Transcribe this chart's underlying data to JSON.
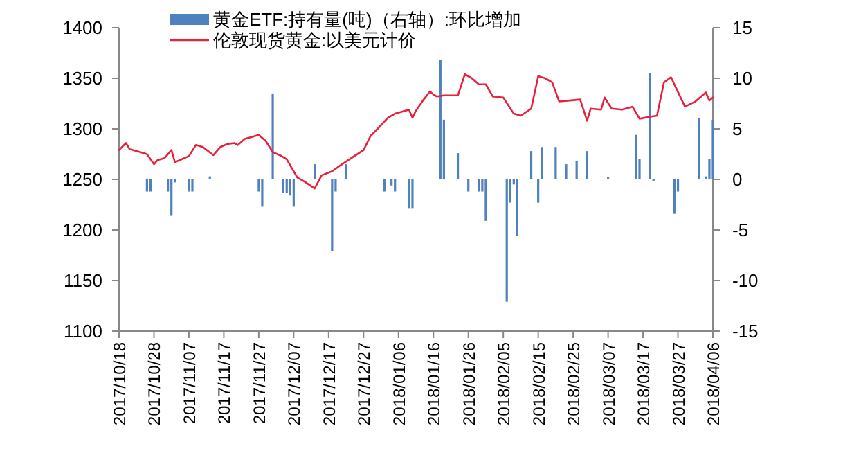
{
  "chart_data": {
    "type": "line",
    "legend": "top",
    "xlim": [
      "2017-10-18",
      "2018-04-06"
    ],
    "xticks": [
      {
        "value": "2017-10-18",
        "label": "2017/10/18"
      },
      {
        "value": "2017-10-28",
        "label": "2017/10/28"
      },
      {
        "value": "2017-11-07",
        "label": "2017/11/07"
      },
      {
        "value": "2017-11-17",
        "label": "2017/11/17"
      },
      {
        "value": "2017-11-27",
        "label": "2017/11/27"
      },
      {
        "value": "2017-12-07",
        "label": "2017/12/07"
      },
      {
        "value": "2017-12-17",
        "label": "2017/12/17"
      },
      {
        "value": "2017-12-27",
        "label": "2017/12/27"
      },
      {
        "value": "2018-01-06",
        "label": "2018/01/06"
      },
      {
        "value": "2018-01-16",
        "label": "2018/01/16"
      },
      {
        "value": "2018-01-26",
        "label": "2018/01/26"
      },
      {
        "value": "2018-02-05",
        "label": "2018/02/05"
      },
      {
        "value": "2018-02-15",
        "label": "2018/02/15"
      },
      {
        "value": "2018-02-25",
        "label": "2018/02/25"
      },
      {
        "value": "2018-03-07",
        "label": "2018/03/07"
      },
      {
        "value": "2018-03-17",
        "label": "2018/03/17"
      },
      {
        "value": "2018-03-27",
        "label": "2018/03/27"
      },
      {
        "value": "2018-04-06",
        "label": "2018/04/06"
      }
    ],
    "ylim": [
      1100,
      1400
    ],
    "yticks": [
      1100,
      1150,
      1200,
      1250,
      1300,
      1350,
      1400
    ],
    "y2lim": [
      -15,
      15
    ],
    "y2ticks": [
      -15,
      -10,
      -5,
      0,
      5,
      10,
      15
    ],
    "series": [
      {
        "name": "黄金ETF:持有量(吨)（右轴）:环比增加",
        "type": "bar",
        "axis": "y2",
        "color": "#4f81bd",
        "x": [
          "2017-10-26",
          "2017-10-27",
          "2017-11-01",
          "2017-11-02",
          "2017-11-03",
          "2017-11-07",
          "2017-11-08",
          "2017-11-13",
          "2017-11-27",
          "2017-11-28",
          "2017-12-01",
          "2017-12-04",
          "2017-12-05",
          "2017-12-06",
          "2017-12-07",
          "2017-12-13",
          "2017-12-18",
          "2017-12-19",
          "2017-12-22",
          "2018-01-02",
          "2018-01-04",
          "2018-01-05",
          "2018-01-09",
          "2018-01-10",
          "2018-01-18",
          "2018-01-19",
          "2018-01-23",
          "2018-01-26",
          "2018-01-29",
          "2018-01-30",
          "2018-01-31",
          "2018-02-06",
          "2018-02-07",
          "2018-02-08",
          "2018-02-09",
          "2018-02-13",
          "2018-02-15",
          "2018-02-16",
          "2018-02-20",
          "2018-02-23",
          "2018-02-26",
          "2018-03-01",
          "2018-03-07",
          "2018-03-15",
          "2018-03-16",
          "2018-03-19",
          "2018-03-20",
          "2018-03-26",
          "2018-03-27",
          "2018-04-02",
          "2018-04-04",
          "2018-04-05",
          "2018-04-06"
        ],
        "values": [
          -1.2,
          -1.2,
          -1.2,
          -3.6,
          -0.3,
          -1.2,
          -1.2,
          0.3,
          -1.2,
          -2.7,
          8.5,
          -1.3,
          -1.3,
          -1.6,
          -2.7,
          1.5,
          -7.1,
          -1.2,
          1.5,
          -1.2,
          -0.6,
          -1.2,
          -2.9,
          -2.9,
          11.8,
          5.9,
          2.6,
          -1.2,
          -1.2,
          -1.2,
          -4.1,
          -12.1,
          -2.3,
          -0.5,
          -5.6,
          2.8,
          -2.3,
          3.2,
          3.2,
          1.5,
          1.8,
          2.8,
          0.2,
          4.4,
          2.0,
          10.5,
          -0.2,
          -3.4,
          -1.2,
          6.1,
          0.3,
          2.0,
          5.9
        ]
      },
      {
        "name": "伦敦现货黄金:以美元计价",
        "color": "#e8203a",
        "x": [
          "2017-10-18",
          "2017-10-20",
          "2017-10-21",
          "2017-10-24",
          "2017-10-26",
          "2017-10-28",
          "2017-10-29",
          "2017-10-31",
          "2017-11-02",
          "2017-11-03",
          "2017-11-05",
          "2017-11-07",
          "2017-11-09",
          "2017-11-11",
          "2017-11-14",
          "2017-11-16",
          "2017-11-18",
          "2017-11-20",
          "2017-11-21",
          "2017-11-23",
          "2017-11-25",
          "2017-11-27",
          "2017-11-29",
          "2017-12-01",
          "2017-12-03",
          "2017-12-05",
          "2017-12-08",
          "2017-12-10",
          "2017-12-13",
          "2017-12-15",
          "2017-12-18",
          "2017-12-20",
          "2017-12-23",
          "2017-12-27",
          "2017-12-29",
          "2017-12-31",
          "2018-01-03",
          "2018-01-05",
          "2018-01-07",
          "2018-01-09",
          "2018-01-10",
          "2018-01-11",
          "2018-01-13",
          "2018-01-15",
          "2018-01-16",
          "2018-01-17",
          "2018-01-19",
          "2018-01-23",
          "2018-01-25",
          "2018-01-27",
          "2018-01-29",
          "2018-01-31",
          "2018-02-02",
          "2018-02-05",
          "2018-02-08",
          "2018-02-10",
          "2018-02-13",
          "2018-02-15",
          "2018-02-17",
          "2018-02-19",
          "2018-02-21",
          "2018-02-24",
          "2018-02-27",
          "2018-03-01",
          "2018-03-02",
          "2018-03-05",
          "2018-03-06",
          "2018-03-08",
          "2018-03-11",
          "2018-03-14",
          "2018-03-16",
          "2018-03-19",
          "2018-03-21",
          "2018-03-23",
          "2018-03-25",
          "2018-03-29",
          "2018-04-01",
          "2018-04-04",
          "2018-04-05",
          "2018-04-06"
        ],
        "values": [
          1279,
          1286,
          1280,
          1277,
          1275,
          1265,
          1269,
          1271,
          1279,
          1267,
          1270,
          1273,
          1284,
          1282,
          1274,
          1282,
          1285,
          1286,
          1284,
          1290,
          1292,
          1294,
          1288,
          1277,
          1274,
          1270,
          1252,
          1248,
          1241,
          1254,
          1258,
          1263,
          1270,
          1279,
          1293,
          1300,
          1311,
          1315,
          1317,
          1319,
          1311,
          1318,
          1328,
          1337,
          1334,
          1332,
          1333,
          1333,
          1354,
          1350,
          1344,
          1344,
          1332,
          1331,
          1315,
          1313,
          1320,
          1352,
          1350,
          1346,
          1327,
          1328,
          1329,
          1308,
          1320,
          1319,
          1331,
          1320,
          1319,
          1322,
          1310,
          1312,
          1313,
          1346,
          1351,
          1322,
          1327,
          1336,
          1328,
          1331
        ]
      }
    ]
  }
}
